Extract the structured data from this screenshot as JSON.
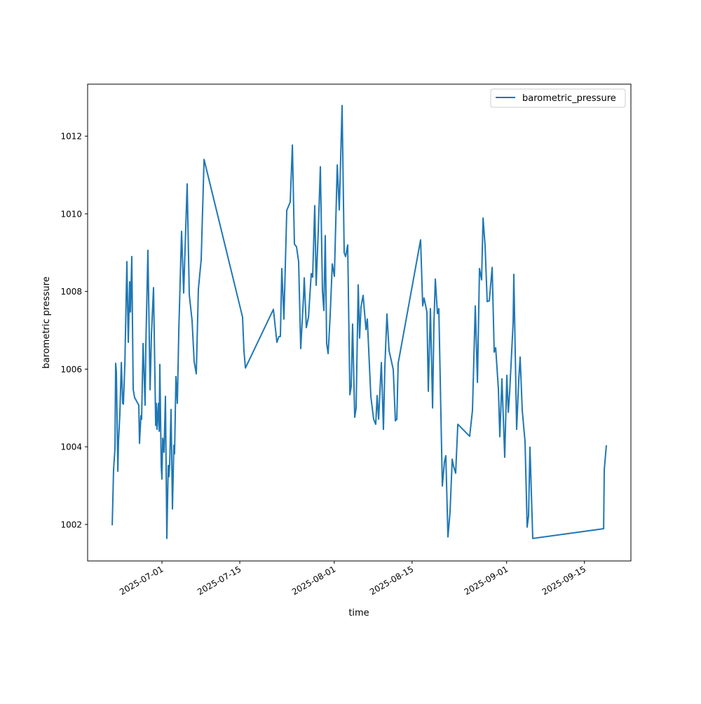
{
  "chart_data": {
    "type": "line",
    "title": "",
    "xlabel": "time",
    "ylabel": "barometric pressure",
    "x_unit": "days since 2025-07-01",
    "x_origin": "2025-07-01",
    "xlim": [
      -13.37,
      84.36
    ],
    "ylim": [
      1001.06,
      1013.34
    ],
    "grid": false,
    "legend_placement": "top-right",
    "xticks": [
      {
        "value": 0,
        "label": "2025-07-01"
      },
      {
        "value": 14,
        "label": "2025-07-15"
      },
      {
        "value": 31,
        "label": "2025-08-01"
      },
      {
        "value": 45,
        "label": "2025-08-15"
      },
      {
        "value": 62,
        "label": "2025-09-01"
      },
      {
        "value": 76,
        "label": "2025-09-15"
      }
    ],
    "yticks": [
      {
        "value": 1002,
        "label": "1002"
      },
      {
        "value": 1004,
        "label": "1004"
      },
      {
        "value": 1006,
        "label": "1006"
      },
      {
        "value": 1008,
        "label": "1008"
      },
      {
        "value": 1010,
        "label": "1010"
      },
      {
        "value": 1012,
        "label": "1012"
      }
    ],
    "series": [
      {
        "name": "barometric_pressure",
        "color": "#1f77b4",
        "x": [
          -8.95,
          -8.7,
          -8.45,
          -8.32,
          -8.2,
          -7.94,
          -7.82,
          -7.57,
          -7.31,
          -7.06,
          -6.94,
          -6.68,
          -6.31,
          -6.05,
          -5.8,
          -5.67,
          -5.42,
          -5.17,
          -4.92,
          -4.16,
          -4.04,
          -3.78,
          -3.66,
          -3.4,
          -3.03,
          -2.9,
          -2.52,
          -2.14,
          -1.89,
          -1.51,
          -1.13,
          -1.01,
          -0.88,
          -0.63,
          -0.5,
          -0.38,
          -0.13,
          0,
          0.13,
          0.38,
          0.63,
          0.88,
          1.13,
          1.26,
          1.39,
          1.64,
          1.89,
          2.14,
          2.27,
          2.52,
          2.77,
          3.03,
          3.53,
          3.91,
          4.54,
          4.92,
          5.42,
          5.8,
          6.18,
          6.56,
          7.06,
          7.57,
          14.5,
          14.75,
          15.01,
          20.05,
          20.68,
          21.06,
          21.31,
          21.56,
          21.94,
          22.45,
          23.08,
          23.46,
          23.83,
          24.21,
          24.59,
          24.97,
          25.47,
          25.6,
          25.98,
          26.36,
          26.86,
          27.11,
          27.49,
          27.74,
          28.12,
          28.5,
          28.88,
          29.13,
          29.38,
          29.63,
          29.89,
          30.26,
          30.64,
          31.02,
          31.53,
          31.9,
          32.41,
          32.79,
          33.04,
          33.42,
          33.8,
          34.05,
          34.3,
          34.68,
          34.93,
          35.31,
          35.56,
          35.81,
          36.19,
          36.7,
          36.95,
          37.58,
          38.08,
          38.46,
          38.71,
          38.97,
          39.47,
          39.85,
          40.1,
          40.48,
          40.86,
          41.61,
          41.99,
          42.25,
          42.5,
          46.53,
          46.91,
          47.16,
          47.67,
          47.92,
          48.3,
          48.68,
          48.93,
          49.18,
          49.56,
          49.81,
          50.44,
          50.82,
          51.07,
          51.45,
          51.83,
          52.21,
          52.46,
          52.84,
          53.22,
          55.36,
          55.86,
          56.37,
          56.75,
          57.12,
          57.5,
          57.76,
          58.13,
          58.51,
          58.89,
          59.4,
          59.77,
          60.03,
          60.53,
          60.78,
          61.16,
          61.66,
          62.04,
          62.3,
          62.55,
          63.18,
          63.3,
          63.81,
          64.19,
          64.44,
          64.82,
          65.32,
          65.7,
          65.95,
          66.2,
          66.71,
          79.45,
          79.57,
          79.95
        ],
        "y": [
          1001.98,
          1003.41,
          1003.95,
          1006.15,
          1005.93,
          1003.37,
          1004.13,
          1004.85,
          1006.17,
          1005.12,
          1005.1,
          1006.12,
          1008.77,
          1006.69,
          1008.25,
          1007.47,
          1008.9,
          1005.48,
          1005.27,
          1005.07,
          1004.09,
          1004.8,
          1004.71,
          1006.66,
          1005.07,
          1006.57,
          1009.06,
          1005.47,
          1006.87,
          1008.1,
          1004.55,
          1005.12,
          1004.45,
          1005.12,
          1004.4,
          1006.12,
          1003.5,
          1003.17,
          1004.22,
          1003.86,
          1005.3,
          1001.64,
          1003.52,
          1003.23,
          1003.53,
          1004.96,
          1002.4,
          1004.04,
          1003.82,
          1005.81,
          1005.12,
          1007.02,
          1009.55,
          1007.96,
          1010.77,
          1007.92,
          1007.25,
          1006.19,
          1005.88,
          1008.06,
          1008.82,
          1011.4,
          1007.34,
          1006.48,
          1006.03,
          1007.54,
          1006.69,
          1006.84,
          1006.84,
          1008.59,
          1007.29,
          1010.09,
          1010.3,
          1011.77,
          1009.22,
          1009.15,
          1008.77,
          1006.53,
          1007.87,
          1008.35,
          1007.07,
          1007.34,
          1008.46,
          1008.37,
          1010.21,
          1008.16,
          1009.55,
          1011.21,
          1008.01,
          1007.51,
          1009.44,
          1006.66,
          1006.4,
          1007.38,
          1008.71,
          1008.39,
          1011.26,
          1010.1,
          1012.79,
          1009.0,
          1008.9,
          1009.2,
          1005.34,
          1005.56,
          1007.16,
          1004.76,
          1005.0,
          1008.17,
          1006.8,
          1007.61,
          1007.9,
          1007.02,
          1007.29,
          1005.3,
          1004.71,
          1004.58,
          1005.32,
          1004.71,
          1006.17,
          1004.45,
          1006.06,
          1007.42,
          1006.48,
          1005.99,
          1004.67,
          1004.71,
          1006.15,
          1009.33,
          1007.63,
          1007.83,
          1007.47,
          1005.43,
          1007.56,
          1005.0,
          1007.16,
          1008.32,
          1007.43,
          1007.56,
          1002.99,
          1003.61,
          1003.77,
          1001.68,
          1002.32,
          1003.68,
          1003.5,
          1003.32,
          1004.58,
          1004.27,
          1004.94,
          1007.63,
          1005.66,
          1008.59,
          1008.3,
          1009.89,
          1009.18,
          1007.74,
          1007.76,
          1008.62,
          1006.44,
          1006.55,
          1005.48,
          1004.26,
          1005.75,
          1003.73,
          1005.84,
          1004.89,
          1005.39,
          1007.2,
          1008.44,
          1004.45,
          1005.75,
          1006.31,
          1004.94,
          1004.13,
          1001.93,
          1002.22,
          1003.99,
          1001.64,
          1001.89,
          1003.41,
          1004.04
        ]
      }
    ]
  }
}
